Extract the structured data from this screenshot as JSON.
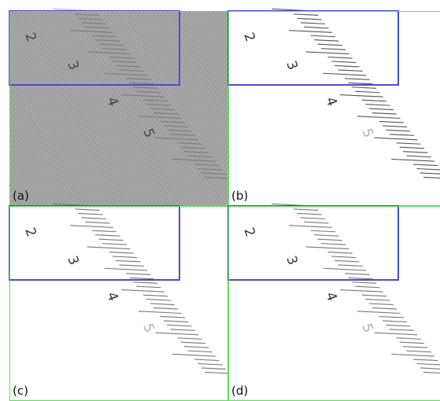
{
  "panels": [
    {
      "label": "(a)"
    },
    {
      "label": "(b)"
    },
    {
      "label": "(c)"
    },
    {
      "label": "(d)"
    }
  ],
  "ruler_digits": [
    "2",
    "3",
    "4",
    "5"
  ]
}
